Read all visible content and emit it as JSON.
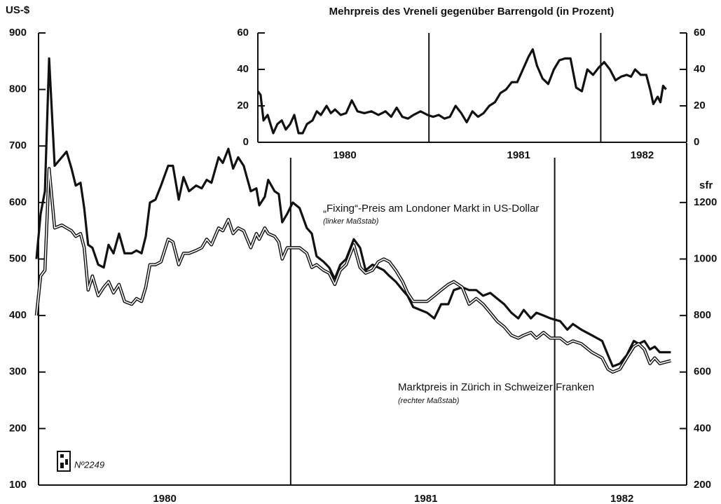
{
  "chart_data": [
    {
      "type": "line",
      "y_label": "US-$",
      "y2_label": "sfr",
      "stamp": "Nº2249",
      "xlim": [
        1980.037,
        1982.5
      ],
      "ylim": [
        100,
        900
      ],
      "y2lim": [
        200,
        1800
      ],
      "yticks": [
        100,
        200,
        300,
        400,
        500,
        600,
        700,
        800,
        900
      ],
      "y2ticks": [
        200,
        400,
        600,
        800,
        1000,
        1200
      ],
      "xticks": [
        {
          "value": 1980.523,
          "label": "1980"
        },
        {
          "value": 1981.512,
          "label": "1981"
        },
        {
          "value": 1982.255,
          "label": "1982"
        }
      ],
      "year_lines": [
        1981.0,
        1982.0
      ],
      "x": [
        1980.037,
        1980.053,
        1980.069,
        1980.085,
        1980.106,
        1980.133,
        1980.151,
        1980.17,
        1980.186,
        1980.204,
        1980.218,
        1980.233,
        1980.249,
        1980.271,
        1980.292,
        1980.31,
        1980.329,
        1980.35,
        1980.371,
        1980.398,
        1980.416,
        1980.435,
        1980.451,
        1980.467,
        1980.488,
        1980.509,
        1980.536,
        1980.554,
        1980.576,
        1980.594,
        1980.615,
        1980.642,
        1980.663,
        1980.682,
        1980.7,
        1980.727,
        1980.743,
        1980.764,
        1980.782,
        1980.801,
        1980.822,
        1980.849,
        1980.87,
        1980.881,
        1980.902,
        1980.915,
        1980.939,
        1980.955,
        1980.968,
        1980.987,
        1981.008,
        1981.034,
        1981.061,
        1981.08,
        1981.098,
        1981.125,
        1981.146,
        1981.167,
        1981.188,
        1981.21,
        1981.239,
        1981.263,
        1981.284,
        1981.31,
        1981.332,
        1981.353,
        1981.374,
        1981.398,
        1981.424,
        1981.443,
        1981.464,
        1981.491,
        1981.517,
        1981.544,
        1981.57,
        1981.597,
        1981.618,
        1981.65,
        1981.676,
        1981.703,
        1981.729,
        1981.756,
        1981.782,
        1981.809,
        1981.836,
        1981.862,
        1981.883,
        1981.91,
        1981.931,
        1981.958,
        1981.984,
        1982.021,
        1982.048,
        1982.069,
        1982.101,
        1982.141,
        1982.18,
        1982.202,
        1982.22,
        1982.247,
        1982.273,
        1982.3,
        1982.318,
        1982.34,
        1982.361,
        1982.379,
        1982.398,
        1982.44
      ],
      "series": [
        {
          "name": "„Fixing“-Preis am Londoner Markt in US-Dollar",
          "note": "(linker Maßstab)",
          "color": "#111111",
          "style": "single",
          "values": [
            500,
            580,
            620,
            855,
            665,
            680,
            690,
            660,
            630,
            635,
            590,
            525,
            520,
            490,
            485,
            525,
            510,
            545,
            510,
            510,
            515,
            510,
            540,
            600,
            605,
            630,
            665,
            665,
            605,
            645,
            620,
            630,
            625,
            640,
            635,
            680,
            670,
            695,
            660,
            680,
            665,
            620,
            625,
            595,
            610,
            640,
            620,
            615,
            565,
            580,
            600,
            590,
            555,
            545,
            505,
            495,
            485,
            465,
            490,
            500,
            535,
            520,
            480,
            490,
            485,
            480,
            470,
            460,
            445,
            435,
            415,
            410,
            405,
            395,
            420,
            420,
            445,
            450,
            445,
            445,
            435,
            440,
            430,
            420,
            405,
            395,
            410,
            395,
            405,
            400,
            395,
            390,
            375,
            385,
            375,
            365,
            355,
            330,
            310,
            315,
            330,
            355,
            350,
            355,
            340,
            345,
            335,
            335
          ]
        },
        {
          "name": "Marktpreis in Zürich in Schweizer Franken",
          "note": "(rechter Maßstab)",
          "color": "#111111",
          "style": "double",
          "axis": "y2",
          "values": [
            800,
            940,
            960,
            1320,
            1110,
            1120,
            1110,
            1100,
            1080,
            1090,
            1040,
            890,
            940,
            870,
            900,
            920,
            880,
            910,
            850,
            840,
            860,
            850,
            900,
            980,
            980,
            990,
            1070,
            1060,
            980,
            1020,
            1020,
            1030,
            1040,
            1070,
            1050,
            1110,
            1100,
            1140,
            1090,
            1110,
            1100,
            1040,
            1090,
            1070,
            1110,
            1090,
            1080,
            1060,
            1000,
            1040,
            1040,
            1040,
            1020,
            970,
            980,
            960,
            950,
            910,
            960,
            980,
            1050,
            970,
            950,
            960,
            990,
            1000,
            990,
            960,
            920,
            880,
            850,
            850,
            850,
            870,
            890,
            910,
            920,
            900,
            840,
            860,
            840,
            810,
            780,
            760,
            730,
            720,
            730,
            740,
            720,
            740,
            720,
            720,
            700,
            710,
            700,
            670,
            650,
            610,
            600,
            610,
            650,
            690,
            700,
            680,
            630,
            650,
            630,
            640
          ]
        }
      ]
    },
    {
      "type": "line",
      "title": "Mehrpreis des Vreneli gegenüber Barrengold (in Prozent)",
      "xlim": [
        1980.0,
        1982.5
      ],
      "ylim": [
        0,
        60
      ],
      "yticks": [
        0,
        20,
        40,
        60
      ],
      "xticks": [
        {
          "value": 1980.51,
          "label": "1980"
        },
        {
          "value": 1981.522,
          "label": "1981"
        },
        {
          "value": 1982.241,
          "label": "1982"
        }
      ],
      "year_lines": [
        1981.0,
        1982.0
      ],
      "x": [
        1980.004,
        1980.02,
        1980.037,
        1980.061,
        1980.094,
        1980.118,
        1980.143,
        1980.167,
        1980.192,
        1980.216,
        1980.241,
        1980.265,
        1980.29,
        1980.322,
        1980.347,
        1980.371,
        1980.404,
        1980.429,
        1980.453,
        1980.486,
        1980.518,
        1980.551,
        1980.584,
        1980.624,
        1980.665,
        1980.706,
        1980.747,
        1980.78,
        1980.812,
        1980.845,
        1980.878,
        1980.91,
        1980.951,
        1980.992,
        1981.024,
        1981.057,
        1981.09,
        1981.122,
        1981.155,
        1981.188,
        1981.22,
        1981.253,
        1981.286,
        1981.318,
        1981.351,
        1981.384,
        1981.416,
        1981.449,
        1981.482,
        1981.514,
        1981.547,
        1981.58,
        1981.604,
        1981.629,
        1981.661,
        1981.694,
        1981.727,
        1981.759,
        1981.792,
        1981.824,
        1981.857,
        1981.89,
        1981.922,
        1981.955,
        1981.988,
        1982.02,
        1982.053,
        1982.086,
        1982.118,
        1982.151,
        1982.176,
        1982.2,
        1982.233,
        1982.265,
        1982.29,
        1982.306,
        1982.331,
        1982.347,
        1982.363,
        1982.38
      ],
      "series": [
        {
          "color": "#111111",
          "style": "single",
          "values": [
            28,
            26,
            12,
            15,
            5,
            10,
            12,
            7,
            10,
            15,
            5,
            5,
            10,
            12,
            17,
            15,
            20,
            16,
            18,
            15,
            16,
            23,
            17,
            16,
            17,
            15,
            17,
            14,
            19,
            14,
            13,
            15,
            17,
            15,
            14,
            15,
            13,
            14,
            20,
            16,
            11,
            17,
            14,
            16,
            20,
            22,
            27,
            29,
            33,
            33,
            40,
            47,
            51,
            42,
            35,
            32,
            40,
            45,
            46,
            46,
            30,
            28,
            40,
            37,
            41,
            44,
            40,
            34,
            36,
            37,
            36,
            40,
            37,
            37,
            28,
            21,
            25,
            22,
            31,
            29
          ]
        }
      ]
    }
  ]
}
